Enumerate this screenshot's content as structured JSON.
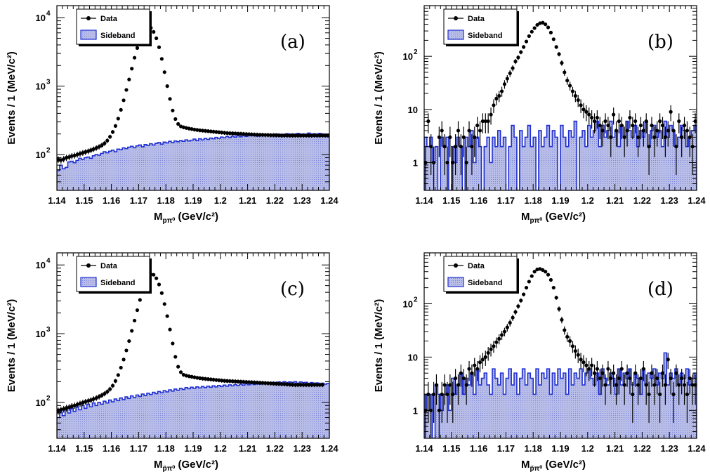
{
  "chart_data": [
    {
      "type": "histogram",
      "panel_label": "(a)",
      "xlabel_main": "M",
      "xlabel_sub": "pπ⁰",
      "xlabel_unit": " (GeV/c²)",
      "ylabel": "Events / 1 (MeV/c²)",
      "xlim": [
        1.14,
        1.24
      ],
      "ylim": [
        30,
        15000
      ],
      "yscale": "log",
      "x_ticks": [
        "1.14",
        "1.15",
        "1.16",
        "1.17",
        "1.18",
        "1.19",
        "1.2",
        "1.21",
        "1.22",
        "1.23",
        "1.24"
      ],
      "y_ticks": [
        {
          "value": 100,
          "label": "10",
          "exp": "2"
        },
        {
          "value": 1000,
          "label": "10",
          "exp": "3"
        },
        {
          "value": 10000,
          "label": "10",
          "exp": "4"
        }
      ],
      "legend": {
        "position": "top-left",
        "entries": [
          "Data",
          "Sideband"
        ]
      },
      "series": [
        {
          "name": "Data",
          "kind": "points",
          "y": [
            85,
            83,
            86,
            90,
            92,
            95,
            97,
            100,
            103,
            106,
            109,
            112,
            116,
            120,
            125,
            130,
            137,
            146,
            160,
            182,
            214,
            262,
            335,
            450,
            620,
            880,
            1250,
            1800,
            2600,
            3600,
            4800,
            6000,
            7000,
            7400,
            7100,
            6200,
            5000,
            3700,
            2500,
            1600,
            1000,
            650,
            440,
            330,
            280,
            258,
            250,
            245,
            240,
            236,
            232,
            229,
            226,
            224,
            222,
            220,
            218,
            216,
            214,
            212,
            210,
            208,
            206,
            205,
            204,
            203,
            202,
            201,
            200,
            199,
            198,
            197,
            196,
            195,
            194,
            194,
            193,
            193,
            192,
            192,
            191,
            191,
            190,
            190,
            190,
            190,
            190,
            190,
            190,
            190,
            190,
            190,
            190,
            190,
            190,
            190,
            190,
            190,
            190,
            190
          ]
        },
        {
          "name": "Sideband",
          "kind": "histogram",
          "color": "#1f2fd0",
          "y": [
            58,
            70,
            62,
            65,
            78,
            80,
            76,
            82,
            88,
            85,
            90,
            92,
            88,
            96,
            100,
            98,
            104,
            110,
            106,
            112,
            116,
            110,
            120,
            118,
            125,
            122,
            128,
            132,
            126,
            134,
            138,
            130,
            140,
            136,
            144,
            138,
            146,
            150,
            142,
            152,
            148,
            156,
            150,
            158,
            154,
            160,
            156,
            164,
            158,
            162,
            168,
            160,
            170,
            164,
            172,
            166,
            174,
            170,
            178,
            172,
            180,
            176,
            184,
            178,
            186,
            180,
            188,
            182,
            190,
            184,
            192,
            188,
            194,
            186,
            196,
            190,
            198,
            192,
            196,
            188,
            200,
            194,
            198,
            190,
            202,
            196,
            200,
            192,
            204,
            198,
            200,
            194,
            206,
            198,
            202,
            196,
            204,
            200,
            198,
            196
          ]
        }
      ]
    },
    {
      "type": "histogram",
      "panel_label": "(b)",
      "xlabel_main": "M",
      "xlabel_sub": "pπ⁰",
      "xlabel_unit": " (GeV/c²)",
      "ylabel": "Events / 1 (MeV/c²)",
      "xlim": [
        1.14,
        1.24
      ],
      "ylim": [
        0.3,
        900
      ],
      "yscale": "log",
      "x_ticks": [
        "1.14",
        "1.15",
        "1.16",
        "1.17",
        "1.18",
        "1.19",
        "1.2",
        "1.21",
        "1.22",
        "1.23",
        "1.24"
      ],
      "y_ticks": [
        {
          "value": 1,
          "label": "1",
          "exp": ""
        },
        {
          "value": 10,
          "label": "10",
          "exp": ""
        },
        {
          "value": 100,
          "label": "10",
          "exp": "2"
        }
      ],
      "legend": {
        "position": "top-left",
        "entries": [
          "Data",
          "Sideband"
        ]
      },
      "series": [
        {
          "name": "Data",
          "kind": "points",
          "y": [
            1,
            6,
            2,
            1,
            0,
            3,
            4,
            2,
            1,
            3,
            1,
            2,
            4,
            2,
            3,
            1,
            4,
            2,
            3,
            5,
            4,
            6,
            6,
            6,
            8,
            12,
            16,
            18,
            22,
            30,
            38,
            48,
            60,
            80,
            95,
            120,
            150,
            190,
            240,
            290,
            340,
            390,
            420,
            430,
            400,
            350,
            280,
            210,
            150,
            110,
            75,
            50,
            35,
            28,
            22,
            18,
            15,
            12,
            10,
            9,
            8,
            7,
            6,
            7,
            5,
            4,
            6,
            5,
            3,
            8,
            4,
            6,
            5,
            3,
            4,
            7,
            5,
            6,
            3,
            5,
            4,
            6,
            2,
            5,
            3,
            4,
            6,
            5,
            3,
            4,
            9,
            4,
            2,
            6,
            3,
            5,
            4,
            3,
            2,
            6
          ]
        },
        {
          "name": "Sideband",
          "kind": "histogram",
          "color": "#1f2fd0",
          "y": [
            3,
            2,
            3,
            1,
            2,
            0,
            3,
            2,
            3,
            0,
            2,
            1,
            3,
            2,
            0,
            3,
            2,
            4,
            1,
            3,
            2,
            0,
            2,
            3,
            1,
            3,
            2,
            4,
            2,
            3,
            0,
            2,
            5,
            3,
            0,
            4,
            2,
            3,
            5,
            2,
            3,
            0,
            4,
            2,
            3,
            5,
            2,
            4,
            3,
            0,
            5,
            3,
            2,
            4,
            3,
            6,
            0,
            3,
            4,
            2,
            5,
            3,
            4,
            6,
            2,
            5,
            3,
            4,
            6,
            3,
            4,
            2,
            5,
            3,
            6,
            4,
            3,
            5,
            2,
            4,
            3,
            6,
            2,
            4,
            5,
            3,
            4,
            2,
            6,
            3,
            5,
            4,
            2,
            3,
            5,
            4,
            2,
            3,
            4,
            5
          ]
        }
      ]
    },
    {
      "type": "histogram",
      "panel_label": "(c)",
      "xlabel_main": "M",
      "xlabel_sub": "p̄π⁰",
      "xlabel_unit": " (GeV/c²)",
      "ylabel": "Events / 1 (MeV/c²)",
      "xlim": [
        1.14,
        1.24
      ],
      "ylim": [
        30,
        15000
      ],
      "yscale": "log",
      "x_ticks": [
        "1.14",
        "1.15",
        "1.16",
        "1.17",
        "1.18",
        "1.19",
        "1.2",
        "1.21",
        "1.22",
        "1.23",
        "1.24"
      ],
      "y_ticks": [
        {
          "value": 100,
          "label": "10",
          "exp": "2"
        },
        {
          "value": 1000,
          "label": "10",
          "exp": "3"
        },
        {
          "value": 10000,
          "label": "10",
          "exp": "4"
        }
      ],
      "legend": {
        "position": "top-left",
        "entries": [
          "Data",
          "Sideband"
        ]
      },
      "series": [
        {
          "name": "Data",
          "kind": "points",
          "y": [
            75,
            78,
            80,
            83,
            85,
            88,
            90,
            93,
            96,
            99,
            102,
            105,
            108,
            112,
            116,
            121,
            127,
            134,
            143,
            156,
            175,
            205,
            250,
            320,
            420,
            570,
            780,
            1100,
            1550,
            2200,
            3100,
            4200,
            5500,
            6600,
            7300,
            7200,
            6400,
            5200,
            3900,
            2700,
            1800,
            1150,
            720,
            460,
            330,
            275,
            252,
            245,
            240,
            236,
            232,
            228,
            225,
            222,
            220,
            218,
            216,
            214,
            212,
            210,
            208,
            206,
            205,
            204,
            203,
            202,
            201,
            200,
            199,
            198,
            197,
            196,
            195,
            194,
            193,
            192,
            191,
            190,
            189,
            188,
            187,
            186,
            185,
            184,
            183,
            182,
            181,
            180,
            180,
            180,
            180,
            180,
            180,
            180,
            180,
            180,
            180,
            180
          ]
        },
        {
          "name": "Sideband",
          "kind": "histogram",
          "color": "#1f2fd0",
          "y": [
            60,
            72,
            64,
            78,
            70,
            82,
            74,
            86,
            78,
            90,
            82,
            94,
            86,
            98,
            90,
            100,
            94,
            104,
            98,
            108,
            102,
            112,
            106,
            116,
            110,
            120,
            114,
            124,
            118,
            128,
            122,
            132,
            126,
            136,
            130,
            140,
            134,
            144,
            138,
            148,
            142,
            152,
            146,
            156,
            150,
            160,
            154,
            164,
            158,
            166,
            160,
            168,
            162,
            170,
            164,
            172,
            166,
            174,
            168,
            176,
            170,
            178,
            172,
            180,
            174,
            182,
            176,
            184,
            178,
            186,
            180,
            188,
            182,
            190,
            184,
            192,
            186,
            194,
            188,
            196,
            190,
            198,
            192,
            200,
            194,
            198,
            196,
            200,
            190,
            198,
            194,
            196,
            188,
            194,
            190,
            192,
            186,
            190,
            184,
            188
          ]
        }
      ]
    },
    {
      "type": "histogram",
      "panel_label": "(d)",
      "xlabel_main": "M",
      "xlabel_sub": "p̄π⁰",
      "xlabel_unit": " (GeV/c²)",
      "ylabel": "Events / 1 (MeV/c²)",
      "xlim": [
        1.14,
        1.24
      ],
      "ylim": [
        0.3,
        900
      ],
      "yscale": "log",
      "x_ticks": [
        "1.14",
        "1.15",
        "1.16",
        "1.17",
        "1.18",
        "1.19",
        "1.2",
        "1.21",
        "1.22",
        "1.23",
        "1.24"
      ],
      "y_ticks": [
        {
          "value": 1,
          "label": "1",
          "exp": ""
        },
        {
          "value": 10,
          "label": "10",
          "exp": ""
        },
        {
          "value": 100,
          "label": "10",
          "exp": "2"
        }
      ],
      "legend": {
        "position": "top-left",
        "entries": [
          "Data",
          "Sideband"
        ]
      },
      "series": [
        {
          "name": "Data",
          "kind": "points",
          "y": [
            1,
            2,
            1,
            2,
            3,
            1,
            2,
            3,
            2,
            3,
            2,
            4,
            3,
            5,
            4,
            3,
            6,
            5,
            7,
            6,
            8,
            9,
            10,
            12,
            14,
            16,
            19,
            22,
            26,
            30,
            36,
            44,
            55,
            70,
            90,
            115,
            150,
            200,
            260,
            330,
            400,
            440,
            450,
            430,
            400,
            350,
            280,
            200,
            130,
            80,
            50,
            32,
            24,
            20,
            16,
            13,
            11,
            9,
            8,
            7,
            6,
            7,
            5,
            6,
            4,
            5,
            3,
            6,
            4,
            5,
            3,
            4,
            6,
            3,
            5,
            4,
            2,
            5,
            3,
            4,
            6,
            3,
            2,
            5,
            3,
            4,
            2,
            5,
            3,
            9,
            4,
            2,
            5,
            3,
            4,
            3,
            2,
            4,
            3,
            3
          ]
        },
        {
          "name": "Sideband",
          "kind": "histogram",
          "color": "#1f2fd0",
          "y": [
            2,
            1,
            2,
            0,
            3,
            2,
            1,
            2,
            3,
            1,
            4,
            2,
            3,
            5,
            2,
            4,
            3,
            5,
            2,
            6,
            3,
            4,
            5,
            3,
            2,
            6,
            4,
            3,
            5,
            2,
            4,
            6,
            3,
            5,
            2,
            4,
            6,
            3,
            5,
            4,
            2,
            6,
            3,
            5,
            4,
            6,
            2,
            5,
            3,
            6,
            4,
            5,
            2,
            6,
            3,
            5,
            4,
            6,
            3,
            5,
            6,
            4,
            3,
            5,
            2,
            6,
            4,
            3,
            5,
            4,
            2,
            6,
            3,
            5,
            4,
            6,
            3,
            5,
            4,
            2,
            6,
            3,
            5,
            4,
            6,
            3,
            5,
            4,
            12,
            3,
            5,
            4,
            6,
            3,
            5,
            4,
            6,
            3,
            4,
            5
          ]
        }
      ]
    }
  ]
}
